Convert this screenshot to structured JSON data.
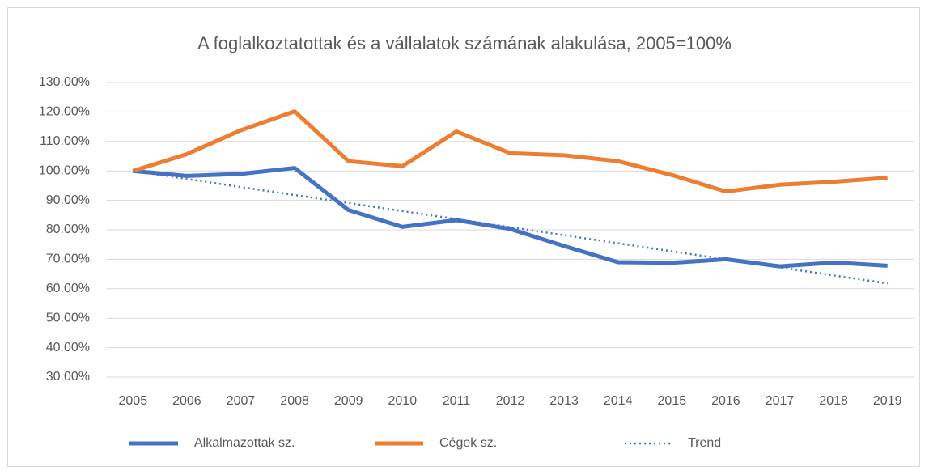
{
  "chart_data": {
    "type": "line",
    "title": "A foglalkoztatottak és a vállalatok számának alakulása, 2005=100%",
    "categories": [
      "2005",
      "2006",
      "2007",
      "2008",
      "2009",
      "2010",
      "2011",
      "2012",
      "2013",
      "2014",
      "2015",
      "2016",
      "2017",
      "2018",
      "2019"
    ],
    "series": [
      {
        "name": "Alkalmazottak sz.",
        "color": "#4472c4",
        "dash": false,
        "values": [
          100,
          98.3,
          99,
          101,
          86.7,
          81,
          83.3,
          80.3,
          74.5,
          69,
          68.8,
          70,
          67.6,
          68.9,
          67.8
        ]
      },
      {
        "name": "Cégek sz.",
        "color": "#ed7d31",
        "dash": false,
        "values": [
          100,
          105.7,
          113.8,
          120.2,
          103.3,
          101.6,
          113.4,
          106,
          105.3,
          103.3,
          98.6,
          93,
          95.3,
          96.3,
          97.7
        ]
      },
      {
        "name": "Trend",
        "color": "#4472c4",
        "dash": true,
        "values": [
          100,
          97.27,
          94.54,
          91.81,
          89.09,
          86.36,
          83.63,
          80.9,
          78.17,
          75.44,
          72.71,
          69.99,
          67.26,
          64.53,
          61.8
        ]
      }
    ],
    "ylim": [
      30,
      130
    ],
    "yticks": [
      {
        "value": 30,
        "label": "30.00%"
      },
      {
        "value": 40,
        "label": "40.00%"
      },
      {
        "value": 50,
        "label": "50.00%"
      },
      {
        "value": 60,
        "label": "60.00%"
      },
      {
        "value": 70,
        "label": "70.00%"
      },
      {
        "value": 80,
        "label": "80.00%"
      },
      {
        "value": 90,
        "label": "90.00%"
      },
      {
        "value": 100,
        "label": "100.00%"
      },
      {
        "value": 110,
        "label": "110.00%"
      },
      {
        "value": 120,
        "label": "120.00%"
      },
      {
        "value": 130,
        "label": "130.00%"
      }
    ],
    "grid": true,
    "legend": "bottom"
  }
}
